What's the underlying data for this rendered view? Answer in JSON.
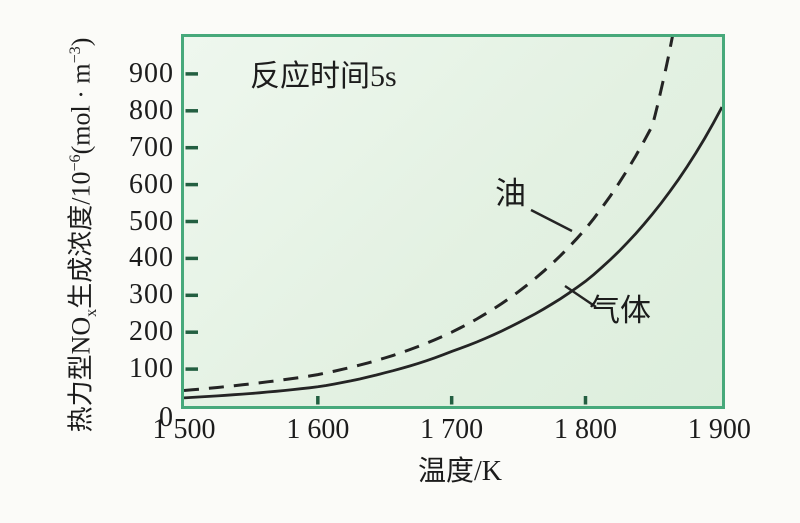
{
  "figure": {
    "annotation": "反应时间5s",
    "x_axis_title": "温度/K",
    "ylabel_parts": {
      "p1": "热力型NO",
      "sub1": "x",
      "p2": "生成浓度/10",
      "sup1": "−6",
      "p3": "(mol · m",
      "sup2": "−3",
      "p4": ")"
    }
  },
  "chart_data": {
    "type": "line",
    "title": "",
    "annotation": "反应时间5s",
    "xlabel": "温度/K",
    "ylabel": "热力型NOx生成浓度/10−6(mol·m−3)",
    "xlim": [
      1500,
      1902
    ],
    "ylim": [
      0,
      1000
    ],
    "x_ticks": [
      1500,
      1600,
      1700,
      1800,
      1900
    ],
    "x_tick_labels": [
      "1 500",
      "1 600",
      "1 700",
      "1 800",
      "1 900"
    ],
    "y_ticks": [
      0,
      100,
      200,
      300,
      400,
      500,
      600,
      700,
      800,
      900
    ],
    "grid": false,
    "legend_position": "labels-on-curves",
    "series": [
      {
        "name": "油",
        "style": "dashed",
        "points": [
          [
            1500,
            42
          ],
          [
            1550,
            60
          ],
          [
            1600,
            85
          ],
          [
            1650,
            130
          ],
          [
            1700,
            200
          ],
          [
            1750,
            310
          ],
          [
            1800,
            480
          ],
          [
            1850,
            760
          ],
          [
            1866,
            1020
          ]
        ]
      },
      {
        "name": "气体",
        "style": "solid",
        "points": [
          [
            1500,
            22
          ],
          [
            1550,
            34
          ],
          [
            1600,
            52
          ],
          [
            1650,
            90
          ],
          [
            1700,
            148
          ],
          [
            1750,
            226
          ],
          [
            1800,
            338
          ],
          [
            1850,
            520
          ],
          [
            1902,
            810
          ]
        ]
      }
    ]
  },
  "colors": {
    "plot_border": "#47a97b",
    "plot_background": "#e3f1e2",
    "page_background": "#fbfbf8",
    "curve": "#242424",
    "tick_mark": "#235f41",
    "text": "#1c1c1c"
  }
}
